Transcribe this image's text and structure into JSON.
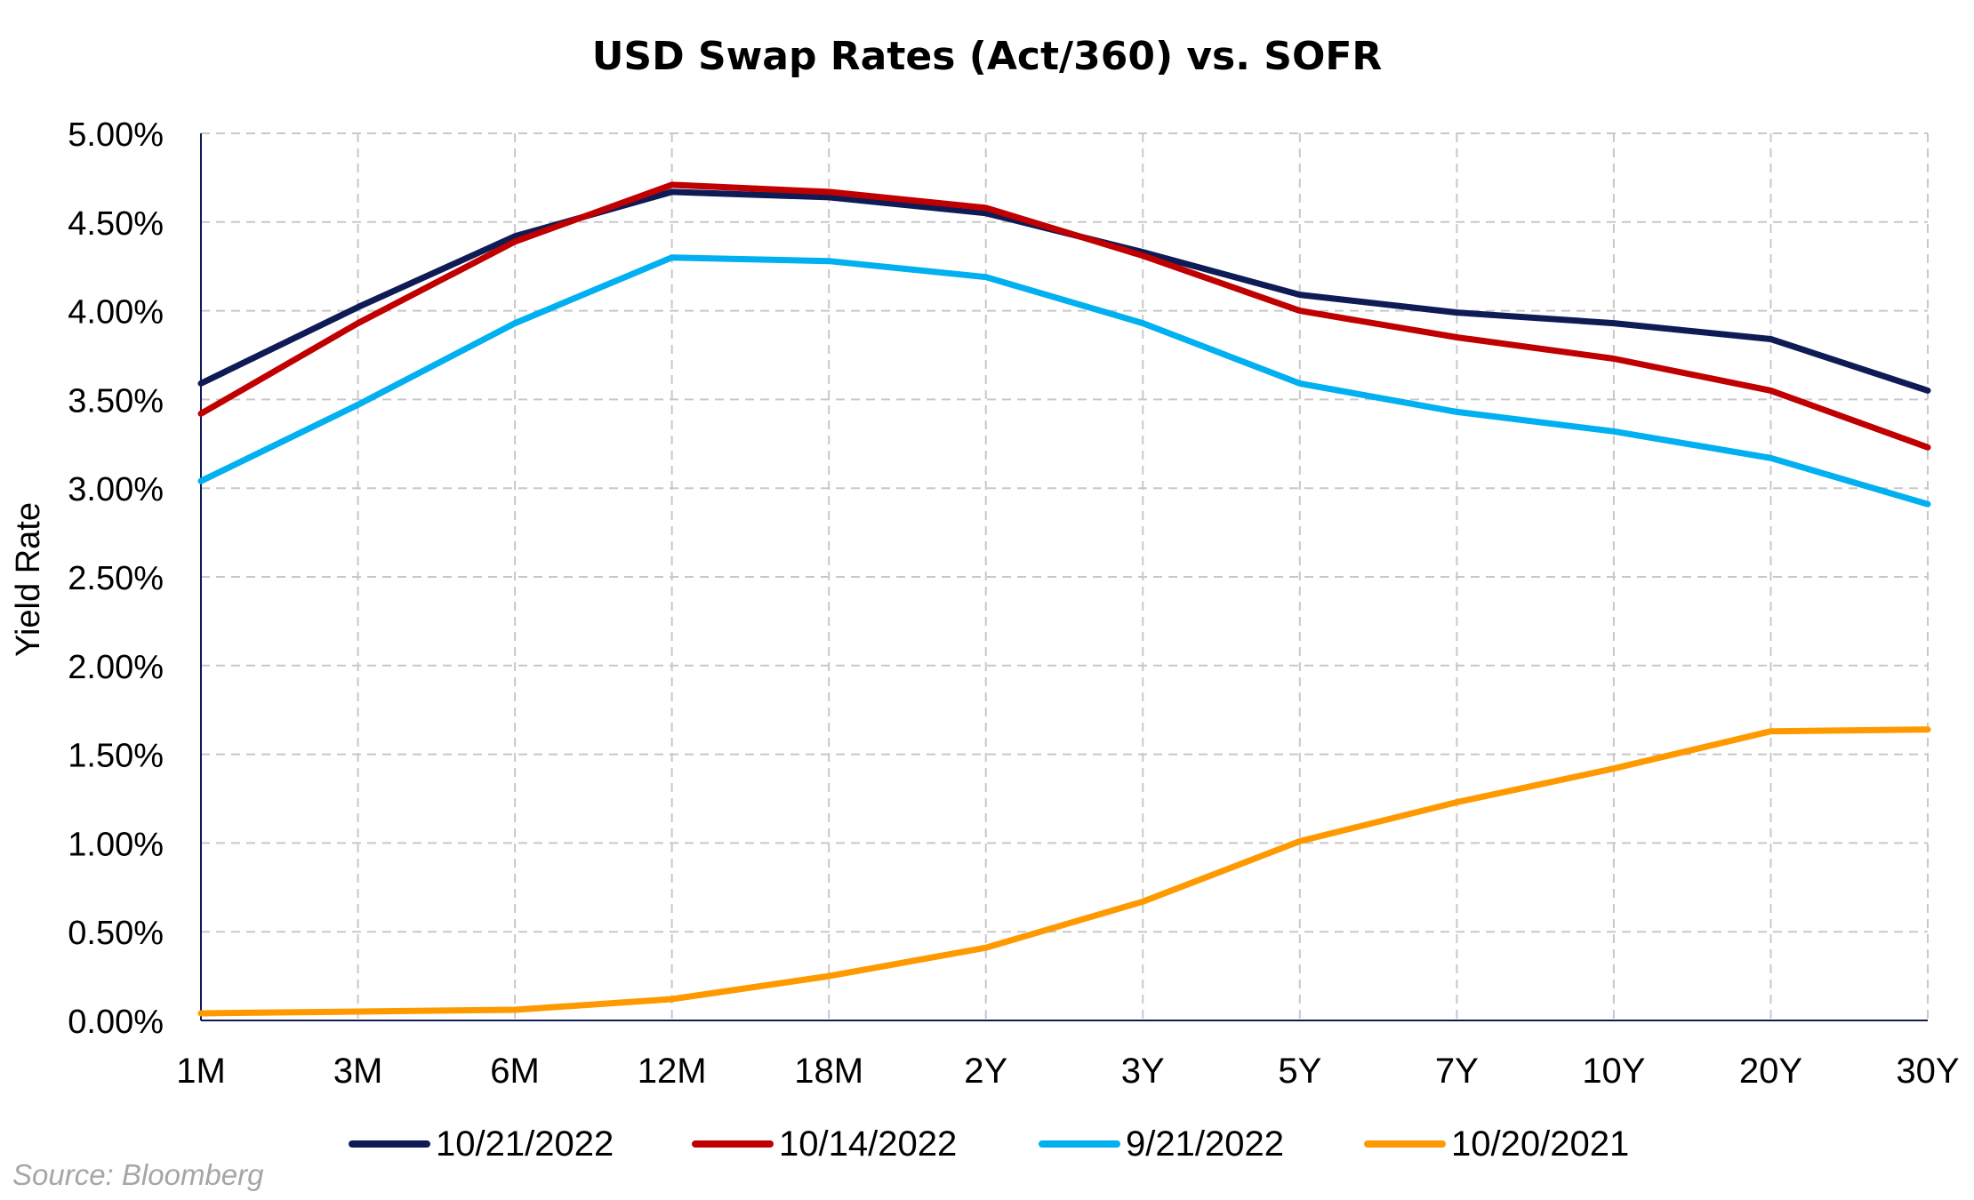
{
  "chart_data": {
    "type": "line",
    "title": "USD Swap Rates (Act/360) vs. SOFR",
    "xlabel": "",
    "ylabel": "Yield Rate",
    "categories": [
      "1M",
      "3M",
      "6M",
      "12M",
      "18M",
      "2Y",
      "3Y",
      "5Y",
      "7Y",
      "10Y",
      "20Y",
      "30Y"
    ],
    "ylim": [
      0,
      5
    ],
    "yticks": [
      "0.00%",
      "0.50%",
      "1.00%",
      "1.50%",
      "2.00%",
      "2.50%",
      "3.00%",
      "3.50%",
      "4.00%",
      "4.50%",
      "5.00%"
    ],
    "grid": true,
    "legend_position": "bottom",
    "series": [
      {
        "name": "10/21/2022",
        "color": "#0e1b55",
        "values": [
          3.59,
          4.02,
          4.42,
          4.67,
          4.64,
          4.55,
          4.33,
          4.09,
          3.99,
          3.93,
          3.84,
          3.55
        ]
      },
      {
        "name": "10/14/2022",
        "color": "#c00000",
        "values": [
          3.42,
          3.93,
          4.39,
          4.71,
          4.67,
          4.58,
          4.31,
          4.0,
          3.85,
          3.73,
          3.55,
          3.23
        ]
      },
      {
        "name": "9/21/2022",
        "color": "#00b0f0",
        "values": [
          3.04,
          3.47,
          3.93,
          4.3,
          4.28,
          4.19,
          3.93,
          3.59,
          3.43,
          3.32,
          3.17,
          2.91
        ]
      },
      {
        "name": "10/20/2021",
        "color": "#ff9900",
        "values": [
          0.04,
          0.05,
          0.06,
          0.12,
          0.25,
          0.41,
          0.67,
          1.01,
          1.23,
          1.42,
          1.63,
          1.64
        ]
      }
    ]
  },
  "source": "Source: Bloomberg"
}
